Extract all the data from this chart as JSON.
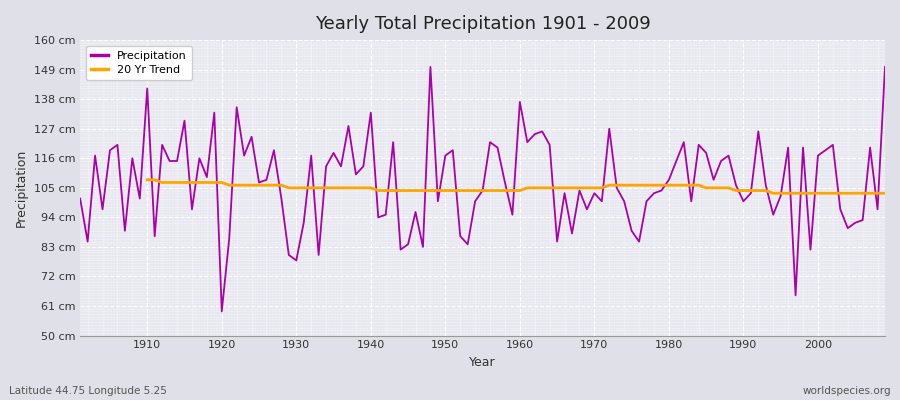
{
  "title": "Yearly Total Precipitation 1901 - 2009",
  "xlabel": "Year",
  "ylabel": "Precipitation",
  "subtitle": "Latitude 44.75 Longitude 5.25",
  "watermark": "worldspecies.org",
  "bg_color": "#e0e0e8",
  "plot_bg_color": "#e8e8f0",
  "precip_color": "#aa00aa",
  "trend_color": "#ffa500",
  "ylim": [
    50,
    160
  ],
  "yticks": [
    50,
    61,
    72,
    83,
    94,
    105,
    116,
    127,
    138,
    149,
    160
  ],
  "ytick_labels": [
    "50 cm",
    "61 cm",
    "72 cm",
    "83 cm",
    "94 cm",
    "105 cm",
    "116 cm",
    "127 cm",
    "138 cm",
    "149 cm",
    "160 cm"
  ],
  "years": [
    1901,
    1902,
    1903,
    1904,
    1905,
    1906,
    1907,
    1908,
    1909,
    1910,
    1911,
    1912,
    1913,
    1914,
    1915,
    1916,
    1917,
    1918,
    1919,
    1920,
    1921,
    1922,
    1923,
    1924,
    1925,
    1926,
    1927,
    1928,
    1929,
    1930,
    1931,
    1932,
    1933,
    1934,
    1935,
    1936,
    1937,
    1938,
    1939,
    1940,
    1941,
    1942,
    1943,
    1944,
    1945,
    1946,
    1947,
    1948,
    1949,
    1950,
    1951,
    1952,
    1953,
    1954,
    1955,
    1956,
    1957,
    1958,
    1959,
    1960,
    1961,
    1962,
    1963,
    1964,
    1965,
    1966,
    1967,
    1968,
    1969,
    1970,
    1971,
    1972,
    1973,
    1974,
    1975,
    1976,
    1977,
    1978,
    1979,
    1980,
    1981,
    1982,
    1983,
    1984,
    1985,
    1986,
    1987,
    1988,
    1989,
    1990,
    1991,
    1992,
    1993,
    1994,
    1995,
    1996,
    1997,
    1998,
    1999,
    2000,
    2001,
    2002,
    2003,
    2004,
    2005,
    2006,
    2007,
    2008,
    2009
  ],
  "precipitation": [
    101,
    85,
    117,
    97,
    119,
    121,
    89,
    116,
    101,
    142,
    87,
    121,
    115,
    115,
    130,
    97,
    116,
    109,
    133,
    59,
    86,
    135,
    117,
    124,
    107,
    108,
    119,
    101,
    80,
    78,
    92,
    117,
    80,
    113,
    118,
    113,
    128,
    110,
    113,
    133,
    94,
    95,
    122,
    82,
    84,
    96,
    83,
    150,
    100,
    117,
    119,
    87,
    84,
    100,
    104,
    122,
    120,
    107,
    95,
    137,
    122,
    125,
    126,
    121,
    85,
    103,
    88,
    104,
    97,
    103,
    100,
    127,
    105,
    100,
    89,
    85,
    100,
    103,
    104,
    108,
    115,
    122,
    100,
    121,
    118,
    108,
    115,
    117,
    106,
    100,
    103,
    126,
    106,
    95,
    102,
    120,
    65,
    120,
    82,
    117,
    119,
    121,
    97,
    90,
    92,
    93,
    120,
    97,
    150
  ],
  "trend": [
    null,
    null,
    null,
    null,
    null,
    null,
    null,
    null,
    null,
    108,
    108,
    107,
    107,
    107,
    107,
    107,
    107,
    107,
    107,
    107,
    106,
    106,
    106,
    106,
    106,
    106,
    106,
    106,
    105,
    105,
    105,
    105,
    105,
    105,
    105,
    105,
    105,
    105,
    105,
    105,
    104,
    104,
    104,
    104,
    104,
    104,
    104,
    104,
    104,
    104,
    104,
    104,
    104,
    104,
    104,
    104,
    104,
    104,
    104,
    104,
    105,
    105,
    105,
    105,
    105,
    105,
    105,
    105,
    105,
    105,
    105,
    106,
    106,
    106,
    106,
    106,
    106,
    106,
    106,
    106,
    106,
    106,
    106,
    106,
    105,
    105,
    105,
    105,
    104,
    104,
    104,
    104,
    104,
    103,
    103,
    103,
    103,
    103,
    103,
    103,
    103,
    103,
    103,
    103,
    103,
    103,
    103,
    103,
    103
  ],
  "xticks": [
    1910,
    1920,
    1930,
    1940,
    1950,
    1960,
    1970,
    1980,
    1990,
    2000
  ],
  "xlim": [
    1901,
    2009
  ]
}
